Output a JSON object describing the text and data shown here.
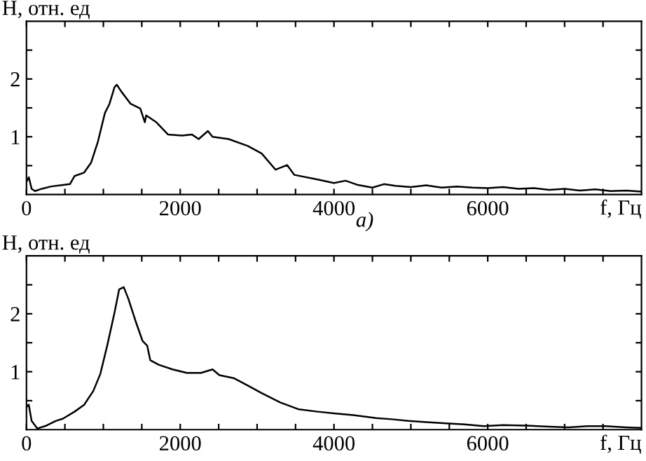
{
  "chart_data": [
    {
      "type": "line",
      "ylabel": "H, отн. ед",
      "xlabel": "f, Гц",
      "annotations": [
        "а)"
      ],
      "xlim": [
        0,
        8000
      ],
      "ylim": [
        0,
        3
      ],
      "xticks": [
        0,
        {
          "value": 500,
          "label": null
        },
        {
          "value": 1000,
          "label": null
        },
        {
          "value": 1500,
          "label": null
        },
        2000,
        {
          "value": 2500,
          "label": null
        },
        {
          "value": 3000,
          "label": null
        },
        {
          "value": 3500,
          "label": null
        },
        4000,
        {
          "value": 4500,
          "label": null
        },
        {
          "value": 5000,
          "label": null
        },
        {
          "value": 5500,
          "label": null
        },
        6000,
        {
          "value": 6500,
          "label": null
        },
        {
          "value": 7000,
          "label": null
        },
        {
          "value": 7500,
          "label": null
        }
      ],
      "yticks": [
        {
          "value": 0.5,
          "label": null
        },
        1,
        {
          "value": 1.5,
          "label": null
        },
        2,
        {
          "value": 2.5,
          "label": null
        }
      ],
      "grid": false,
      "marker": "none",
      "line_style": "solid",
      "series": [
        {
          "color": "#000000",
          "x": [
            0,
            30,
            67,
            110,
            200,
            320,
            440,
            565,
            625,
            750,
            840,
            930,
            1020,
            1080,
            1145,
            1175,
            1235,
            1355,
            1480,
            1540,
            1557,
            1690,
            1840,
            2025,
            2150,
            2240,
            2360,
            2420,
            2630,
            2880,
            3060,
            3240,
            3390,
            3485,
            3790,
            4000,
            4150,
            4300,
            4500,
            4650,
            4800,
            5000,
            5200,
            5400,
            5600,
            5800,
            6000,
            6200,
            6400,
            6600,
            6800,
            7000,
            7200,
            7400,
            7600,
            7800,
            8000
          ],
          "values": [
            0.22,
            0.3,
            0.1,
            0.06,
            0.1,
            0.14,
            0.16,
            0.18,
            0.32,
            0.38,
            0.55,
            0.92,
            1.41,
            1.57,
            1.86,
            1.9,
            1.78,
            1.57,
            1.49,
            1.25,
            1.37,
            1.25,
            1.04,
            1.02,
            1.04,
            0.96,
            1.1,
            1.0,
            0.96,
            0.84,
            0.71,
            0.43,
            0.51,
            0.34,
            0.26,
            0.2,
            0.24,
            0.17,
            0.12,
            0.18,
            0.15,
            0.13,
            0.16,
            0.12,
            0.14,
            0.12,
            0.11,
            0.13,
            0.1,
            0.11,
            0.08,
            0.1,
            0.07,
            0.09,
            0.06,
            0.07,
            0.05
          ]
        }
      ]
    },
    {
      "type": "line",
      "ylabel": "H, отн. ед",
      "xlabel": "f, Гц",
      "xlim": [
        0,
        8000
      ],
      "ylim": [
        0,
        3
      ],
      "xticks": [
        0,
        {
          "value": 500,
          "label": null
        },
        {
          "value": 1000,
          "label": null
        },
        {
          "value": 1500,
          "label": null
        },
        2000,
        {
          "value": 2500,
          "label": null
        },
        {
          "value": 3000,
          "label": null
        },
        {
          "value": 3500,
          "label": null
        },
        4000,
        {
          "value": 4500,
          "label": null
        },
        {
          "value": 5000,
          "label": null
        },
        {
          "value": 5500,
          "label": null
        },
        6000,
        {
          "value": 6500,
          "label": null
        },
        {
          "value": 7000,
          "label": null
        },
        {
          "value": 7500,
          "label": null
        }
      ],
      "yticks": [
        {
          "value": 0.5,
          "label": null
        },
        1,
        {
          "value": 1.5,
          "label": null
        },
        2,
        {
          "value": 2.5,
          "label": null
        }
      ],
      "grid": false,
      "marker": "none",
      "line_style": "solid",
      "series": [
        {
          "color": "#000000",
          "x": [
            0,
            30,
            67,
            140,
            260,
            380,
            475,
            625,
            750,
            870,
            960,
            1050,
            1145,
            1205,
            1265,
            1325,
            1415,
            1510,
            1570,
            1610,
            1720,
            1900,
            2085,
            2270,
            2420,
            2510,
            2695,
            2880,
            3060,
            3300,
            3545,
            3790,
            4000,
            4250,
            4550,
            4750,
            4970,
            5200,
            5460,
            5700,
            5950,
            6200,
            6500,
            6800,
            7050,
            7300,
            7530,
            7800,
            8000
          ],
          "values": [
            0.39,
            0.43,
            0.15,
            0.02,
            0.07,
            0.15,
            0.19,
            0.31,
            0.43,
            0.67,
            0.96,
            1.45,
            2.02,
            2.42,
            2.46,
            2.26,
            1.89,
            1.53,
            1.45,
            1.2,
            1.12,
            1.04,
            0.98,
            0.98,
            1.04,
            0.94,
            0.89,
            0.76,
            0.63,
            0.47,
            0.35,
            0.31,
            0.28,
            0.25,
            0.2,
            0.18,
            0.15,
            0.13,
            0.11,
            0.09,
            0.06,
            0.08,
            0.07,
            0.05,
            0.04,
            0.06,
            0.06,
            0.04,
            0.03
          ]
        }
      ]
    }
  ]
}
